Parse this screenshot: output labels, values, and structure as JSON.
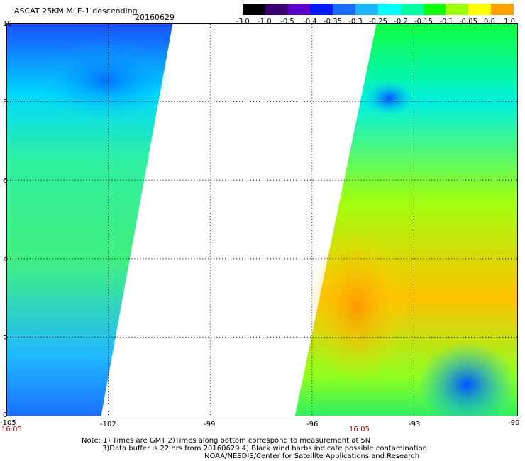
{
  "header": {
    "title": "ASCAT 25KM MLE-1 descending",
    "date": "20160629"
  },
  "colorbar": {
    "labels": [
      "-3.0",
      "-1.0",
      "-0.5",
      "-0.4",
      "-0.35",
      "-0.3",
      "-0.25",
      "-0.2",
      "-0.15",
      "-0.1",
      "-0.05",
      "0.0",
      "1.0"
    ],
    "colors": [
      "#000000",
      "#3a0070",
      "#5a00c8",
      "#0018ff",
      "#1a6cff",
      "#1ab4ff",
      "#00ffff",
      "#00ffa0",
      "#10ff10",
      "#a0ff10",
      "#ffff00",
      "#ffa000",
      "#ff4000"
    ]
  },
  "axes": {
    "x_ticks": [
      "-105",
      "-102",
      "-99",
      "-96",
      "-93",
      "-90"
    ],
    "y_ticks": [
      "0",
      "2",
      "4",
      "6",
      "8",
      "10"
    ]
  },
  "times": {
    "left": "16:05",
    "right": "16:05"
  },
  "notes": {
    "line1": "Note: 1) Times are GMT 2)Times along bottom correspond to measurement at 5N",
    "line2": "3)Data buffer is 22 hrs from 20160629 4) Black wind barbs indicate possible contamination",
    "line3": "NOAA/NESDIS/Center for Satellite Applications and Research"
  }
}
